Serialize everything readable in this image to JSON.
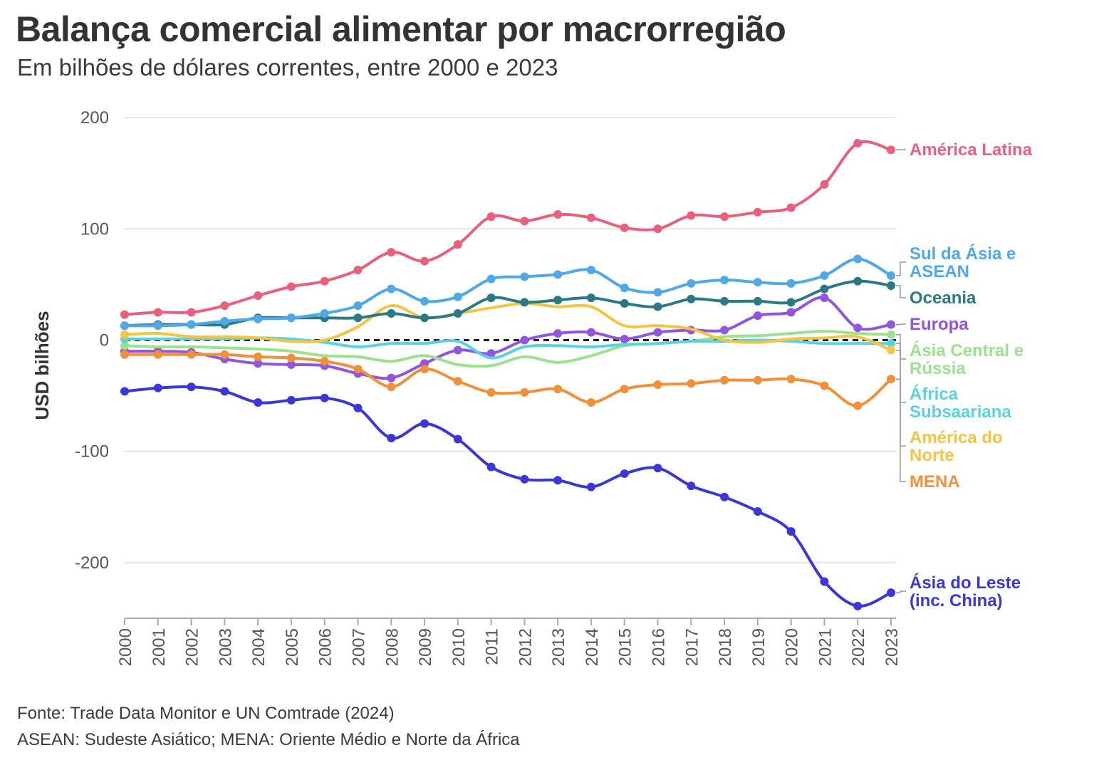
{
  "title": "Balança comercial alimentar por macrorregião",
  "subtitle": "Em bilhões de dólares correntes, entre 2000 e 2023",
  "source": "Fonte: Trade Data Monitor e UN Comtrade (2024)",
  "note": "ASEAN: Sudeste Asiático; MENA: Oriente Médio e Norte da África",
  "chart_data": {
    "type": "line",
    "ylabel": "USD bilhões",
    "xlabel": "",
    "ylim": [
      -250,
      200
    ],
    "yticks": [
      200,
      100,
      0,
      -100,
      -200
    ],
    "grid": "horizontal",
    "zero_line": "dashed",
    "x": [
      "2000",
      "2001",
      "2002",
      "2003",
      "2004",
      "2005",
      "2006",
      "2007",
      "2008",
      "2009",
      "2010",
      "2011",
      "2012",
      "2013",
      "2014",
      "2015",
      "2016",
      "2017",
      "2018",
      "2019",
      "2020",
      "2021",
      "2022",
      "2023"
    ],
    "series": [
      {
        "name": "América Latina",
        "label_lines": [
          "América Latina"
        ],
        "color": "#e8607c",
        "values": [
          23,
          25,
          25,
          31,
          40,
          48,
          53,
          63,
          79,
          71,
          86,
          111,
          107,
          113,
          110,
          101,
          100,
          112,
          111,
          115,
          119,
          140,
          177,
          171
        ]
      },
      {
        "name": "Sul da Ásia e ASEAN",
        "label_lines": [
          "Sul da Ásia e",
          "ASEAN"
        ],
        "color": "#4fa8e8",
        "values": [
          13,
          13,
          14,
          17,
          19,
          20,
          24,
          31,
          46,
          35,
          39,
          55,
          57,
          59,
          63,
          47,
          43,
          51,
          54,
          52,
          51,
          58,
          73,
          58
        ]
      },
      {
        "name": "Oceania",
        "label_lines": [
          "Oceania"
        ],
        "color": "#2a7a85",
        "values": [
          13,
          14,
          14,
          14,
          20,
          20,
          20,
          20,
          24,
          20,
          24,
          38,
          34,
          36,
          38,
          33,
          30,
          37,
          35,
          35,
          34,
          46,
          53,
          49
        ]
      },
      {
        "name": "Europa",
        "label_lines": [
          "Europa"
        ],
        "color": "#9156e0",
        "values": [
          -10,
          -10,
          -11,
          -17,
          -21,
          -22,
          -23,
          -30,
          -34,
          -21,
          -9,
          -12,
          0,
          6,
          7,
          1,
          7,
          9,
          9,
          22,
          25,
          38,
          11,
          14
        ]
      },
      {
        "name": "Ásia Central e Rússia",
        "label_lines": [
          "Ásia Central e",
          "Rússia"
        ],
        "color": "#9de08f",
        "values": [
          -5,
          -6,
          -6,
          -7,
          -8,
          -10,
          -14,
          -15,
          -19,
          -14,
          -22,
          -23,
          -15,
          -20,
          -14,
          -5,
          -3,
          -1,
          3,
          4,
          6,
          8,
          6,
          5
        ]
      },
      {
        "name": "África Subsaariana",
        "label_lines": [
          "África",
          "Subsaariana"
        ],
        "color": "#5ad3df",
        "values": [
          1,
          1,
          1,
          1,
          2,
          1,
          -2,
          -6,
          -3,
          -3,
          -1,
          -16,
          -6,
          -5,
          -6,
          -4,
          -3,
          -1,
          -1,
          0,
          -1,
          -3,
          -3,
          -3
        ]
      },
      {
        "name": "América do Norte",
        "label_lines": [
          "América do",
          "Norte"
        ],
        "color": "#f4c443",
        "values": [
          5,
          6,
          3,
          3,
          2,
          -1,
          0,
          12,
          31,
          20,
          24,
          29,
          33,
          30,
          30,
          13,
          13,
          10,
          0,
          -2,
          1,
          2,
          3,
          -9
        ]
      },
      {
        "name": "MENA",
        "label_lines": [
          "MENA"
        ],
        "color": "#f0913a",
        "values": [
          -13,
          -13,
          -13,
          -13,
          -15,
          -16,
          -19,
          -26,
          -42,
          -26,
          -37,
          -47,
          -47,
          -44,
          -56,
          -44,
          -40,
          -39,
          -36,
          -36,
          -35,
          -41,
          -59,
          -35
        ]
      },
      {
        "name": "Ásia do Leste (inc. China)",
        "label_lines": [
          "Ásia do Leste",
          "(inc. China)"
        ],
        "color": "#3a36d8",
        "values": [
          -46,
          -43,
          -42,
          -46,
          -56,
          -54,
          -52,
          -61,
          -88,
          -75,
          -89,
          -114,
          -125,
          -126,
          -132,
          -120,
          -115,
          -131,
          -141,
          -154,
          -172,
          -217,
          -239,
          -227
        ]
      }
    ]
  }
}
